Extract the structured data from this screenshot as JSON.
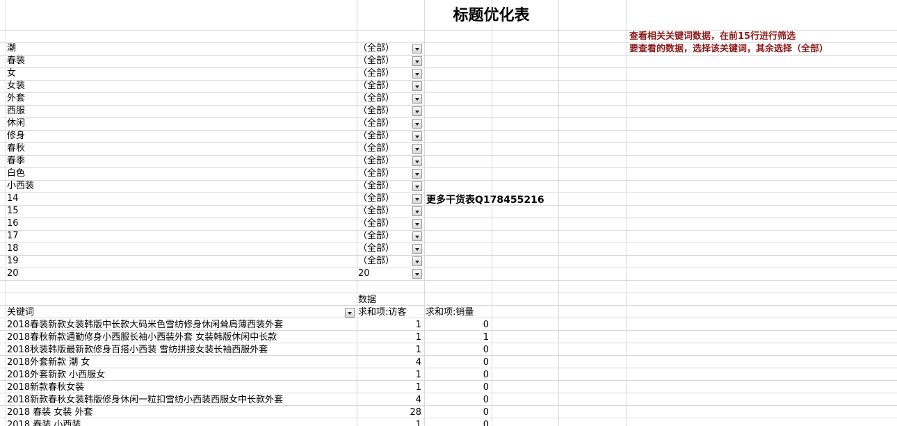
{
  "title": "标题优化表",
  "note": [
    "查看相关关键词数据，在前15行进行筛选",
    "要查看的数据，选择该关键词，其余选择（全部）"
  ],
  "promo": "更多干货表Q178455216",
  "filters": [
    {
      "label": "潮",
      "value": "（全部）"
    },
    {
      "label": "春装",
      "value": "（全部）"
    },
    {
      "label": "女",
      "value": "（全部）"
    },
    {
      "label": "女装",
      "value": "（全部）"
    },
    {
      "label": "外套",
      "value": "（全部）"
    },
    {
      "label": "西服",
      "value": "（全部）"
    },
    {
      "label": "休闲",
      "value": "（全部）"
    },
    {
      "label": "修身",
      "value": "（全部）"
    },
    {
      "label": "春秋",
      "value": "（全部）"
    },
    {
      "label": "春季",
      "value": "（全部）"
    },
    {
      "label": "白色",
      "value": "（全部）"
    },
    {
      "label": "小西装",
      "value": "（全部）"
    },
    {
      "label": "14",
      "value": "（全部）"
    },
    {
      "label": "15",
      "value": "（全部）"
    },
    {
      "label": "16",
      "value": "（全部）"
    },
    {
      "label": "17",
      "value": "（全部）"
    },
    {
      "label": "18",
      "value": "（全部）"
    },
    {
      "label": "19",
      "value": "（全部）"
    },
    {
      "label": "20",
      "value": "20"
    }
  ],
  "pivot": {
    "data_label": "数据",
    "row_header": "关键词",
    "columns": [
      "求和项:访客",
      "求和项:销量"
    ],
    "rows": [
      {
        "keyword": "2018春装新款女装韩版中长款大码米色雪纺修身休闲耸肩薄西装外套",
        "values": [
          1,
          0
        ]
      },
      {
        "keyword": "2018春秋新款通勤修身小西服长袖小西装外套 女装韩版休闲中长款",
        "values": [
          1,
          1
        ]
      },
      {
        "keyword": "2018秋装韩版最新款修身百搭小西装 雪纺拼接女装长袖西服外套",
        "values": [
          1,
          0
        ]
      },
      {
        "keyword": "2018外套新款 潮 女",
        "values": [
          4,
          0
        ]
      },
      {
        "keyword": "2018外套新款 小西服女",
        "values": [
          1,
          0
        ]
      },
      {
        "keyword": "2018新款春秋女装",
        "values": [
          1,
          0
        ]
      },
      {
        "keyword": "2018新款春秋女装韩版修身休闲一粒扣雪纺小西装西服女中长款外套",
        "values": [
          4,
          0
        ]
      },
      {
        "keyword": "2018 春装 女装 外套",
        "values": [
          28,
          0
        ]
      },
      {
        "keyword": "2018 春装 小西装",
        "values": [
          1,
          0
        ]
      }
    ]
  }
}
